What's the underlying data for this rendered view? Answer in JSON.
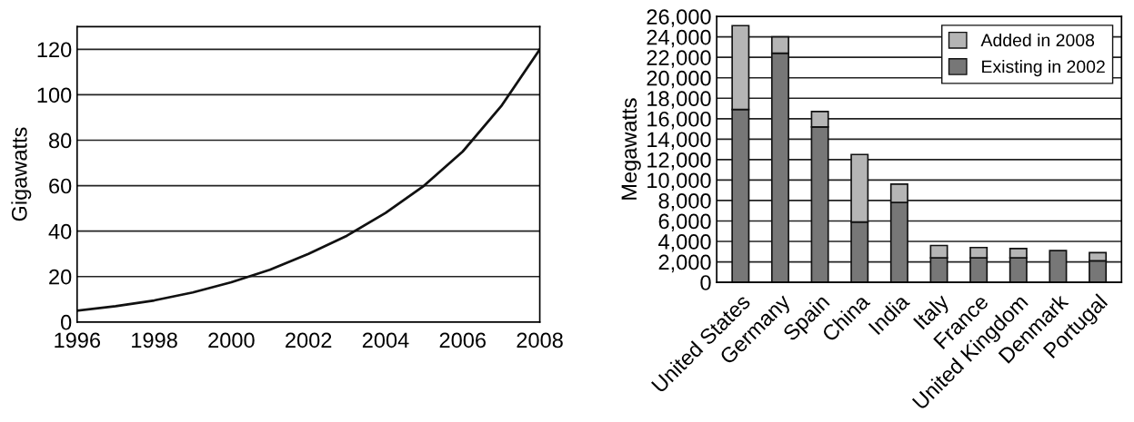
{
  "chart_data": [
    {
      "type": "line",
      "ylabel": "Gigawatts",
      "x": [
        1996,
        1997,
        1998,
        1999,
        2000,
        2001,
        2002,
        2003,
        2004,
        2005,
        2006,
        2007,
        2008
      ],
      "series": [
        {
          "color": "#111111",
          "values": [
            5,
            7,
            9.5,
            13,
            17.5,
            23,
            30,
            38,
            48,
            60,
            75,
            95,
            120
          ]
        }
      ],
      "xlim": [
        1996,
        2008
      ],
      "xticks": [
        1996,
        1998,
        2000,
        2002,
        2004,
        2006,
        2008
      ],
      "ylim": [
        0,
        130
      ],
      "yticks": [
        0,
        20,
        40,
        60,
        80,
        100,
        120
      ],
      "grid": "y",
      "marker": "none",
      "line_style": "solid"
    },
    {
      "type": "bar",
      "stacked": true,
      "ylabel": "Megawatts",
      "categories": [
        "United States",
        "Germany",
        "Spain",
        "China",
        "India",
        "Italy",
        "France",
        "United Kingdom",
        "Denmark",
        "Portugal"
      ],
      "series": [
        {
          "name": "Existing in 2002",
          "color": "#777777",
          "values": [
            16900,
            22400,
            15200,
            5900,
            7800,
            2400,
            2400,
            2400,
            3100,
            2100
          ]
        },
        {
          "name": "Added in 2008",
          "color": "#b5b5b5",
          "values": [
            8200,
            1600,
            1500,
            6600,
            1800,
            1200,
            1000,
            900,
            null,
            800
          ]
        }
      ],
      "ylim": [
        0,
        26000
      ],
      "yticks": [
        {
          "value": 0,
          "label": "0"
        },
        {
          "value": 2000,
          "label": "2,000"
        },
        {
          "value": 4000,
          "label": "4,000"
        },
        {
          "value": 6000,
          "label": "6,000"
        },
        {
          "value": 8000,
          "label": "8,000"
        },
        {
          "value": 10000,
          "label": "10,000"
        },
        {
          "value": 12000,
          "label": "12,000"
        },
        {
          "value": 14000,
          "label": "14,000"
        },
        {
          "value": 16000,
          "label": "16,000"
        },
        {
          "value": 18000,
          "label": "18,000"
        },
        {
          "value": 20000,
          "label": "20,000"
        },
        {
          "value": 22000,
          "label": "22,000"
        },
        {
          "value": 24000,
          "label": "24,000"
        },
        {
          "value": 26000,
          "label": "26,000"
        }
      ],
      "grid": "y",
      "legend": "top right"
    }
  ]
}
